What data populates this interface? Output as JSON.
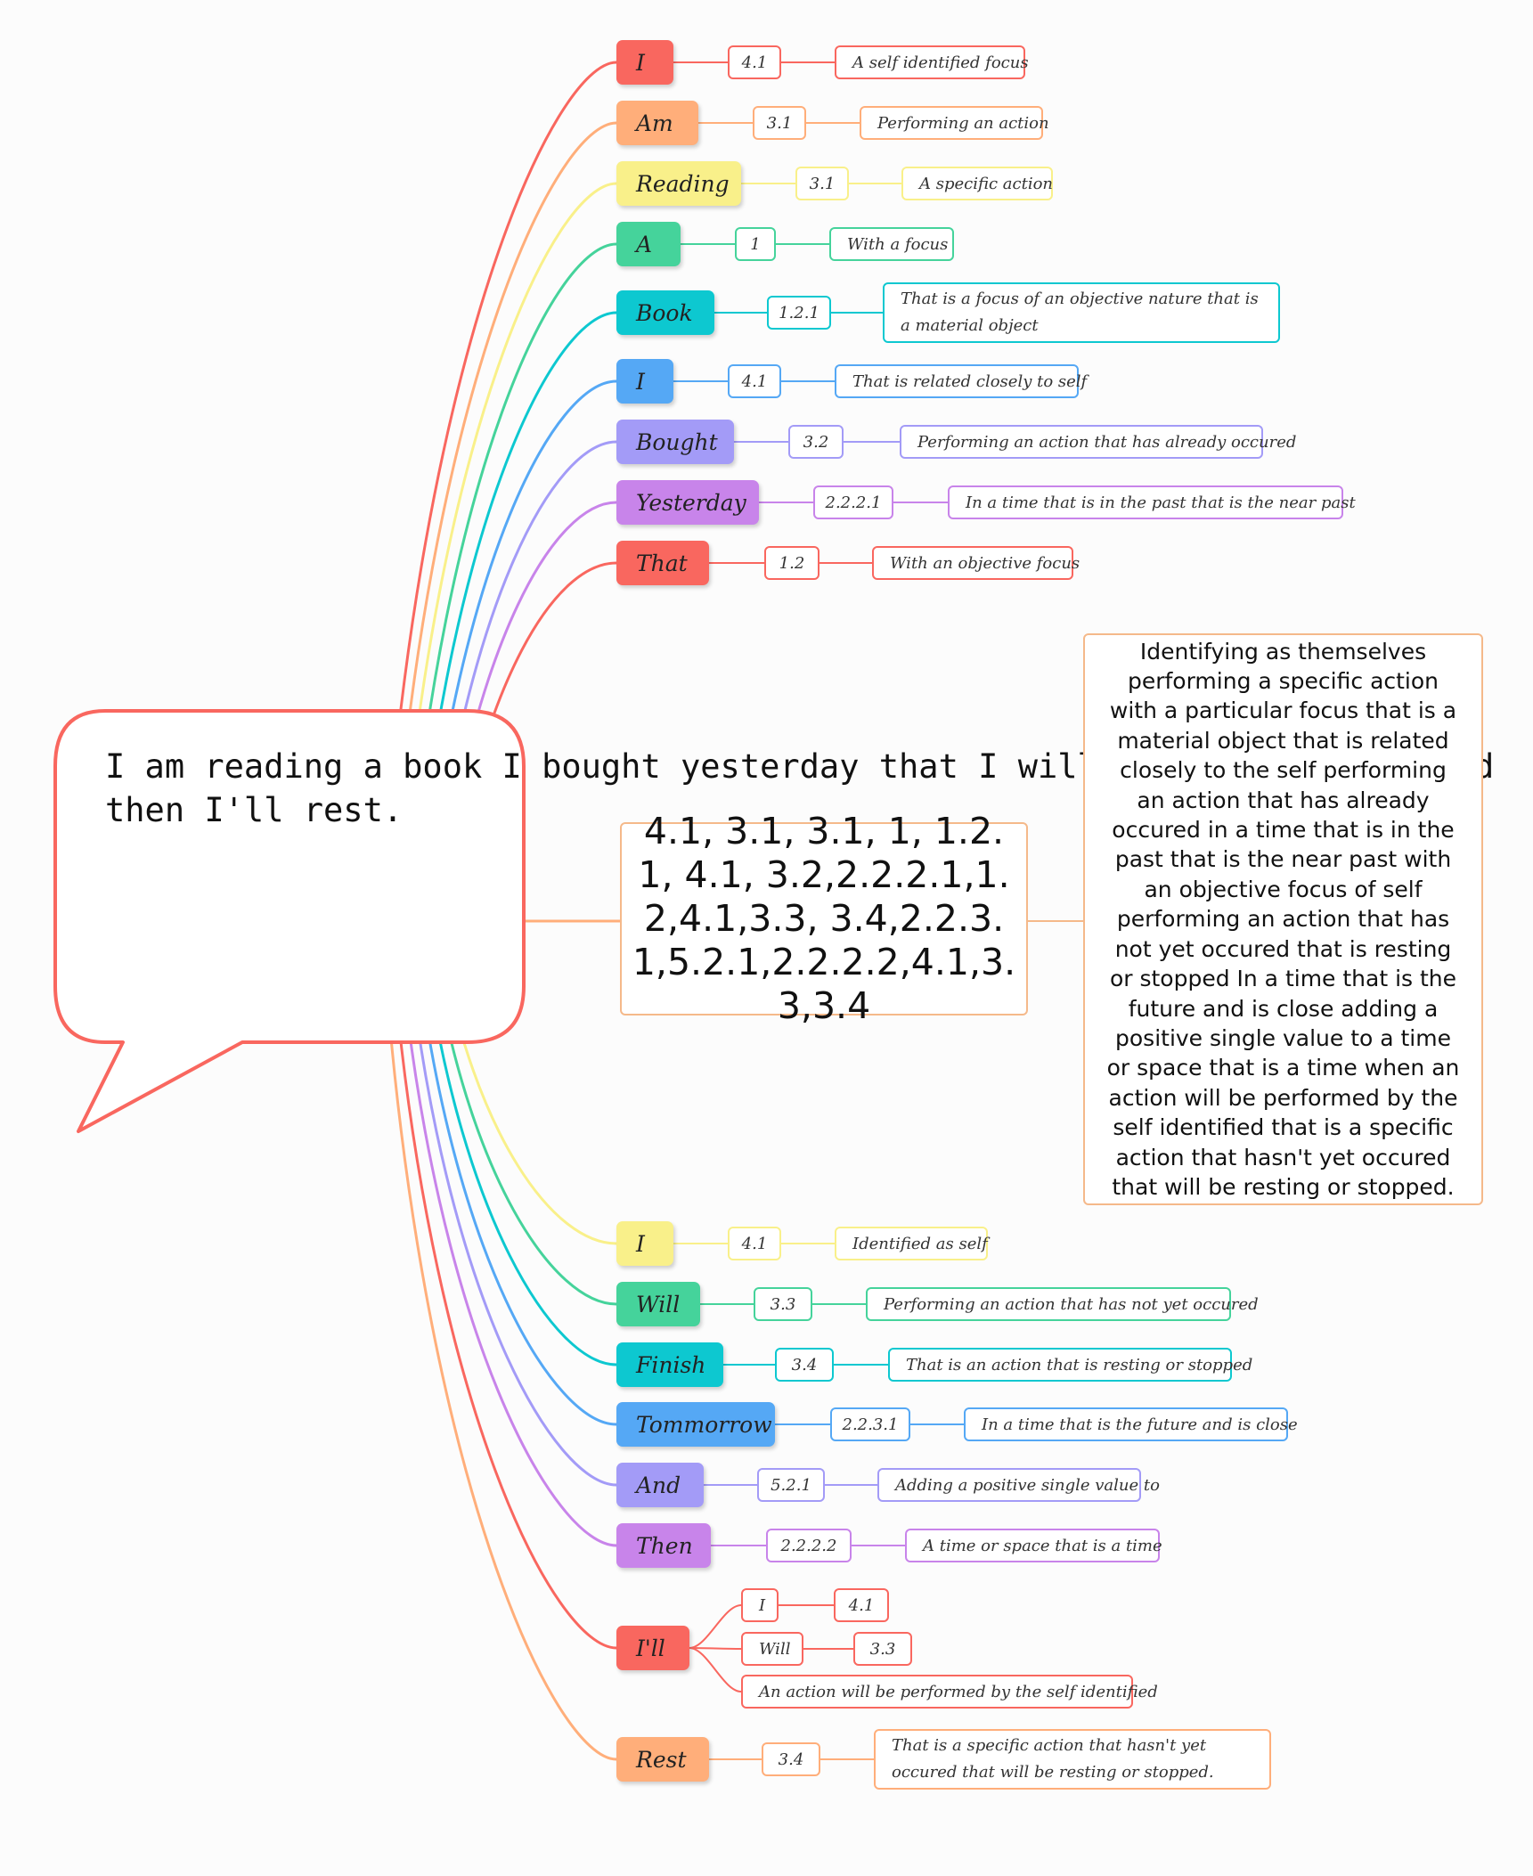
{
  "speech_bubble": {
    "text": "I am reading a book I bought yesterday that I will finish tomorrow and then I'll rest."
  },
  "central": {
    "codes": "4.1, 3.1, 3.1, 1, 1.2.1, 4.1, 3.2,2.2.2.1,1.2,4.1,3.3, 3.4,2.2.3.1,5.2.1,2.2.2.2,4.1,3.3,3.4",
    "explanation": "Identifying as themselves performing a specific action with a particular focus that is a material object that is related closely to the self performing an action that has already occured in a time that is in the past that is the near past with an objective focus of self performing an action that has not yet occured that is resting or stopped In a time that is the future and is close adding a positive single value to a time or space that is a time when an action will be performed by the self identified that is a specific action that hasn't yet occured that will be resting or stopped."
  },
  "words": [
    {
      "word": "I",
      "code": "4.1",
      "meaning": "A self identified focus",
      "color": "#f9675f"
    },
    {
      "word": "Am",
      "code": "3.1",
      "meaning": "Performing an action",
      "color": "#ffae7a"
    },
    {
      "word": "Reading",
      "code": "3.1",
      "meaning": "A specific action",
      "color": "#f9f08a"
    },
    {
      "word": "A",
      "code": "1",
      "meaning": "With a focus",
      "color": "#45d39b"
    },
    {
      "word": "Book",
      "code": "1.2.1",
      "meaning": "That is a focus of an objective nature that is a material object",
      "color": "#0dc8d0"
    },
    {
      "word": "I",
      "code": "4.1",
      "meaning": "That is related closely to self",
      "color": "#55a8f5"
    },
    {
      "word": "Bought",
      "code": "3.2",
      "meaning": "Performing an action that has already occured",
      "color": "#a39bf7"
    },
    {
      "word": "Yesterday",
      "code": "2.2.2.1",
      "meaning": "In a time that is in the past that is the near past",
      "color": "#c884ea"
    },
    {
      "word": "That",
      "code": "1.2",
      "meaning": "With an objective focus",
      "color": "#f9675f"
    },
    {
      "word": "I",
      "code": "4.1",
      "meaning": "Identified as self",
      "color": "#f9f08a"
    },
    {
      "word": "Will",
      "code": "3.3",
      "meaning": "Performing an action that has not yet occured",
      "color": "#45d39b"
    },
    {
      "word": "Finish",
      "code": "3.4",
      "meaning": "That is an action that is resting or stopped",
      "color": "#0dc8d0"
    },
    {
      "word": "Tommorrow",
      "code": "2.2.3.1",
      "meaning": "In a time that is the future and is close",
      "color": "#55a8f5"
    },
    {
      "word": "And",
      "code": "5.2.1",
      "meaning": "Adding a positive single value to",
      "color": "#a39bf7"
    },
    {
      "word": "Then",
      "code": "2.2.2.2",
      "meaning": "A time or space that is a time",
      "color": "#c884ea"
    },
    {
      "word": "I'll",
      "color": "#f9675f",
      "parts": [
        {
          "label": "I",
          "code": "4.1"
        },
        {
          "label": "Will",
          "code": "3.3"
        },
        {
          "label": "An action will be performed by the self identified"
        }
      ]
    },
    {
      "word": "Rest",
      "code": "3.4",
      "meaning": "That is a specific action that hasn't yet occured that will be resting or stopped.",
      "color": "#ffae7a"
    }
  ]
}
